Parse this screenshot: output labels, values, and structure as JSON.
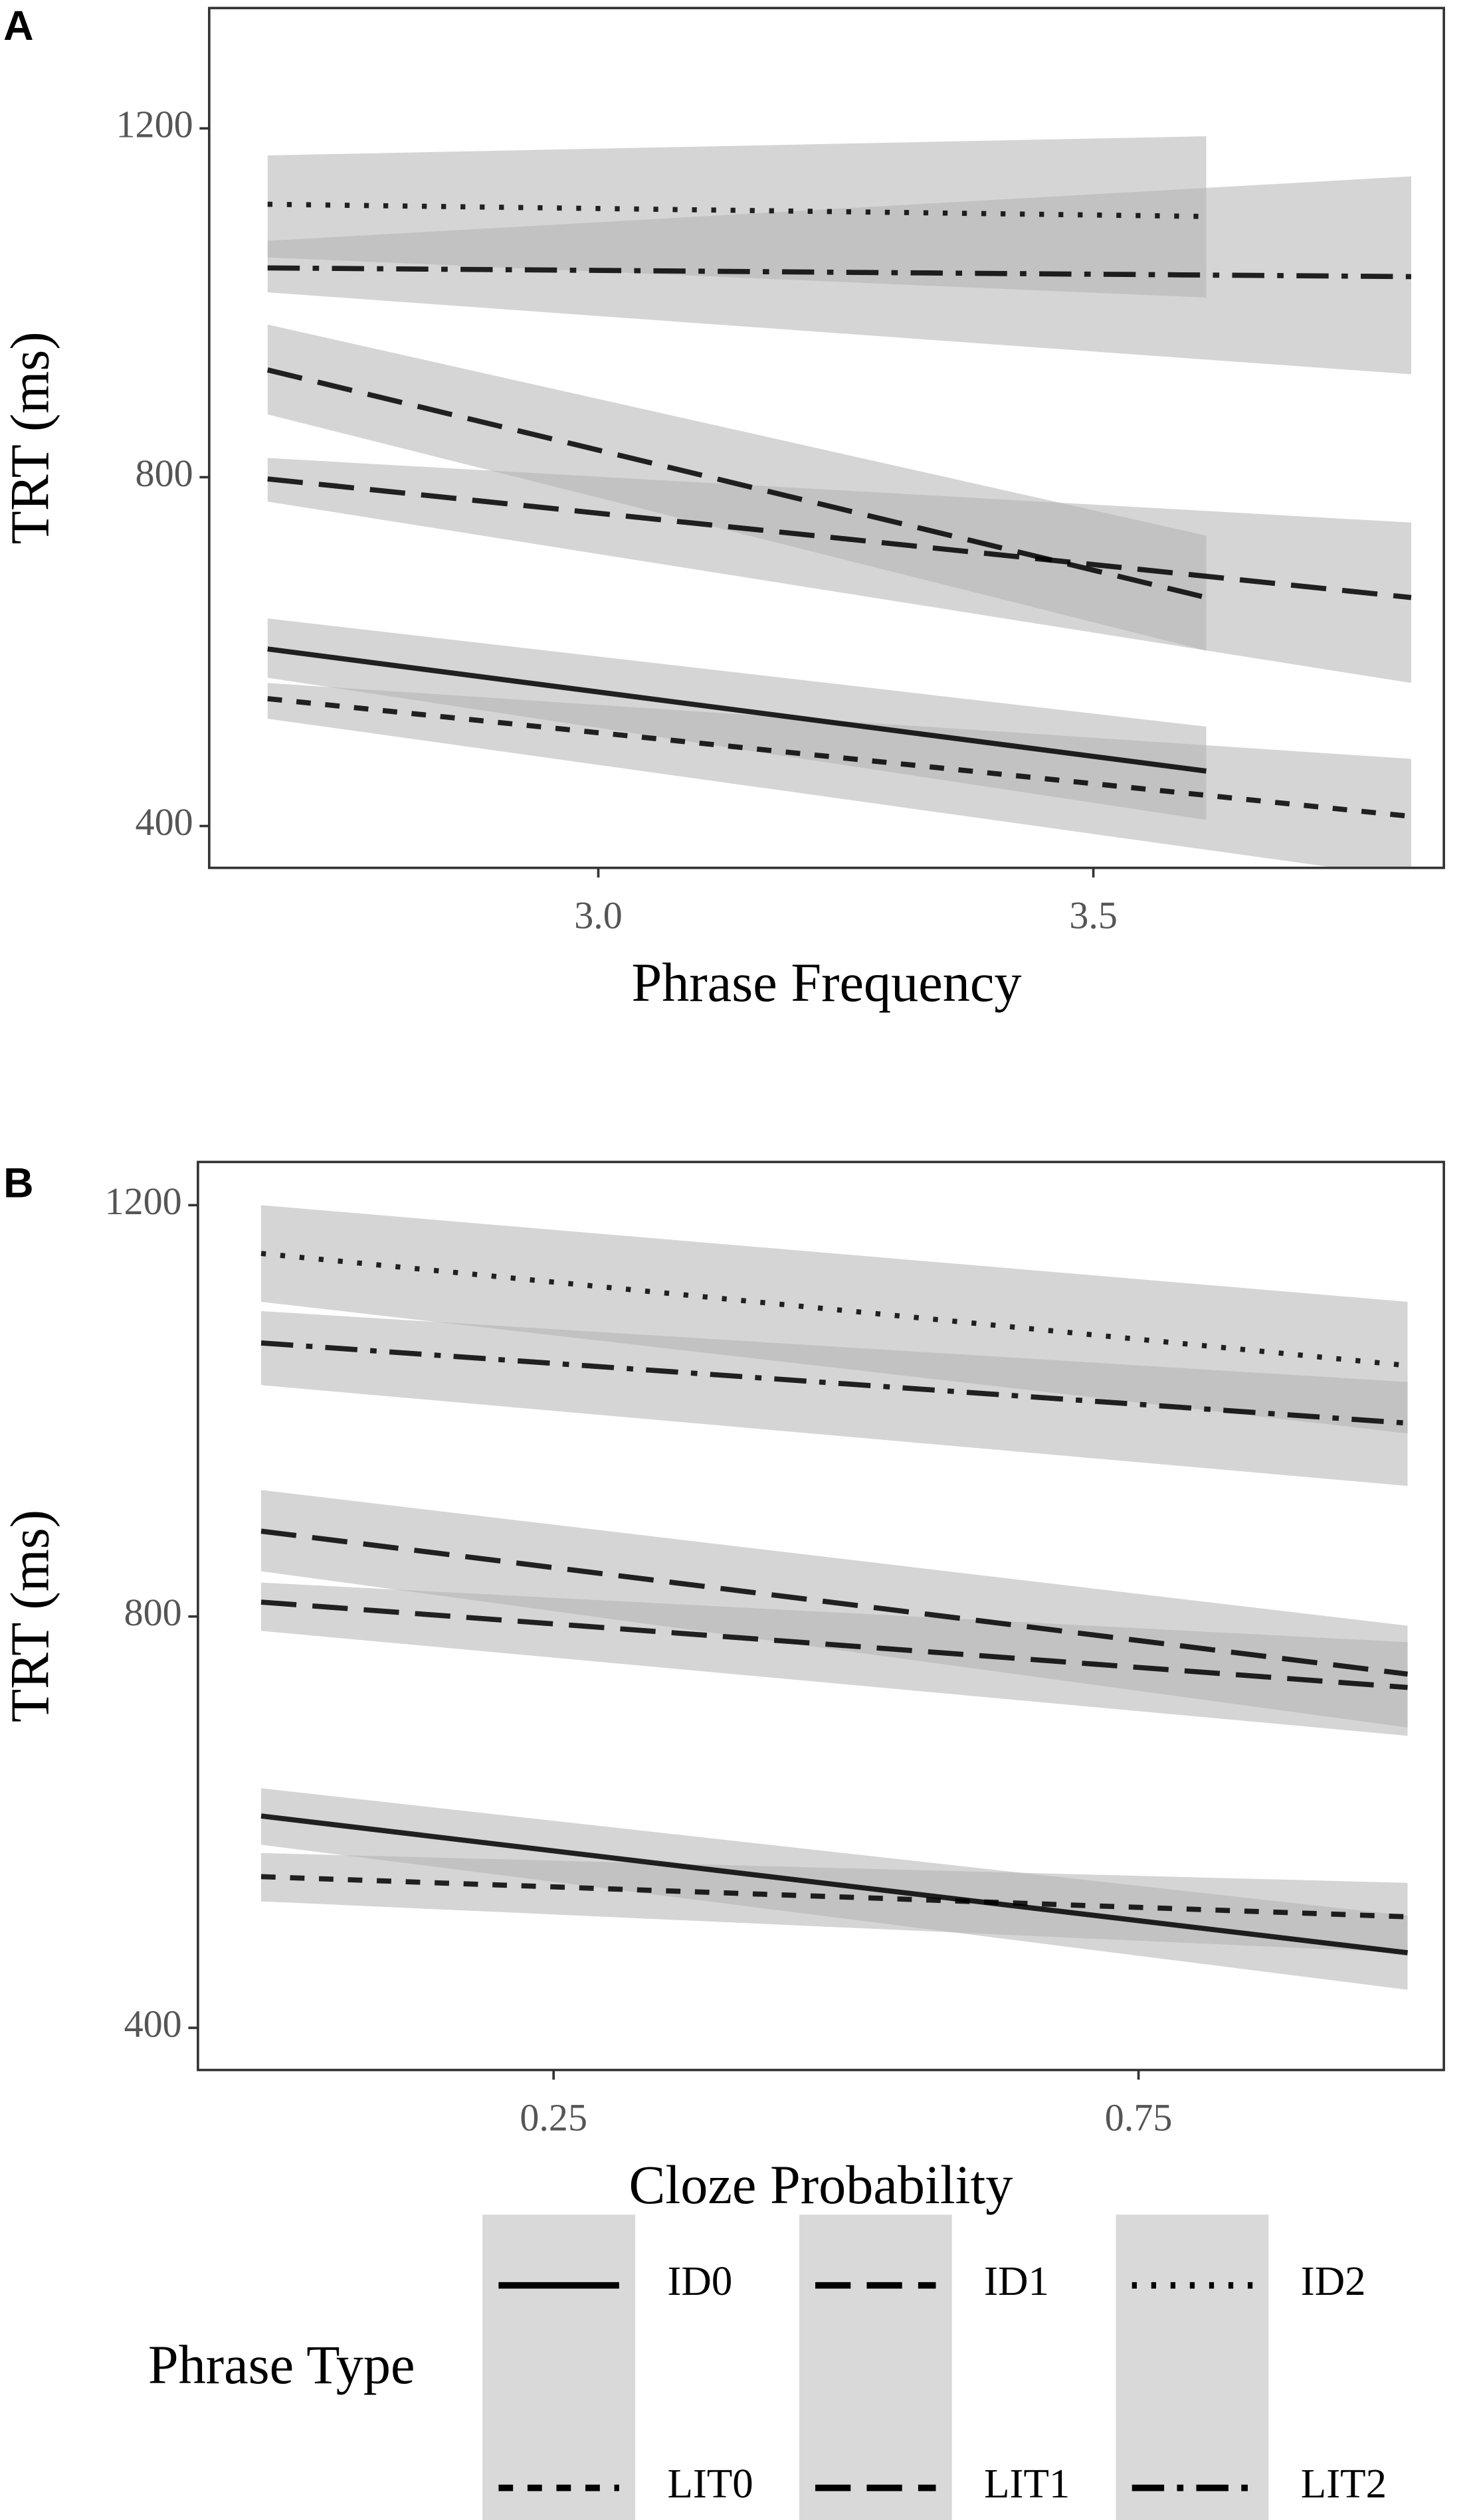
{
  "chart_data": [
    {
      "type": "line",
      "panel_label": "A",
      "x_label": "Phrase Frequency",
      "y_label": "TRT (ms)",
      "xlim": [
        2.607,
        3.854
      ],
      "ylim": [
        352,
        1338
      ],
      "xticks": [
        {
          "value": 3,
          "label": "3.0"
        },
        3.5
      ],
      "yticks": [
        400,
        800,
        1200
      ],
      "band_color": "#b3b3b3",
      "series": [
        {
          "name": "ID0",
          "color": "#000000",
          "dash": "solid",
          "x": [
            2.666,
            3.614
          ],
          "values": [
            603,
            463
          ],
          "lower": [
            570,
            407
          ],
          "upper": [
            638,
            514
          ]
        },
        {
          "name": "ID1",
          "color": "#000000",
          "dash": "longdash",
          "x": [
            2.666,
            3.614
          ],
          "values": [
            923,
            662
          ],
          "lower": [
            872,
            601
          ],
          "upper": [
            975,
            733
          ]
        },
        {
          "name": "ID2",
          "color": "#000000",
          "dash": "dotted",
          "x": [
            2.666,
            3.614
          ],
          "values": [
            1113,
            1099
          ],
          "lower": [
            1052,
            1006
          ],
          "upper": [
            1169,
            1191
          ]
        },
        {
          "name": "LIT0",
          "color": "#000000",
          "dash": "dashed",
          "x": [
            2.666,
            3.821
          ],
          "values": [
            546,
            411
          ],
          "lower": [
            523,
            340
          ],
          "upper": [
            564,
            477
          ]
        },
        {
          "name": "LIT1",
          "color": "#000000",
          "dash": "longdash",
          "x": [
            2.666,
            3.821
          ],
          "values": [
            798,
            662
          ],
          "lower": [
            772,
            564
          ],
          "upper": [
            822,
            748
          ]
        },
        {
          "name": "LIT2",
          "color": "#000000",
          "dash": "dotdash",
          "x": [
            2.666,
            3.821
          ],
          "values": [
            1040,
            1030
          ],
          "lower": [
            1012,
            918
          ],
          "upper": [
            1071,
            1145
          ]
        }
      ]
    },
    {
      "type": "line",
      "panel_label": "B",
      "x_label": "Cloze Probability",
      "y_label": "TRT (ms)",
      "xlim": [
        -0.054,
        1.011
      ],
      "ylim": [
        359,
        1242
      ],
      "xticks": [
        0.25,
        0.75
      ],
      "yticks": [
        400,
        800,
        1200
      ],
      "band_color": "#b3b3b3",
      "legend_title": "Phrase Type",
      "series": [
        {
          "name": "ID0",
          "color": "#000000",
          "dash": "solid",
          "x": [
            0,
            0.98
          ],
          "values": [
            606,
            473
          ],
          "lower": [
            578,
            437
          ],
          "upper": [
            633,
            509
          ]
        },
        {
          "name": "ID1",
          "color": "#000000",
          "dash": "longdash",
          "x": [
            0,
            0.98
          ],
          "values": [
            883,
            744
          ],
          "lower": [
            844,
            692
          ],
          "upper": [
            923,
            791
          ]
        },
        {
          "name": "ID2",
          "color": "#000000",
          "dash": "dotted",
          "x": [
            0,
            0.98
          ],
          "values": [
            1153,
            1044
          ],
          "lower": [
            1106,
            978
          ],
          "upper": [
            1200,
            1106
          ]
        },
        {
          "name": "LIT0",
          "color": "#000000",
          "dash": "dashed",
          "x": [
            0,
            0.98
          ],
          "values": [
            547,
            508
          ],
          "lower": [
            523,
            473
          ],
          "upper": [
            570,
            541
          ]
        },
        {
          "name": "LIT1",
          "color": "#000000",
          "dash": "longdash",
          "x": [
            0,
            0.98
          ],
          "values": [
            814,
            731
          ],
          "lower": [
            786,
            684
          ],
          "upper": [
            833,
            775
          ]
        },
        {
          "name": "LIT2",
          "color": "#000000",
          "dash": "dotdash",
          "x": [
            0,
            0.98
          ],
          "values": [
            1066,
            988
          ],
          "lower": [
            1025,
            927
          ],
          "upper": [
            1097,
            1028
          ]
        }
      ]
    }
  ]
}
